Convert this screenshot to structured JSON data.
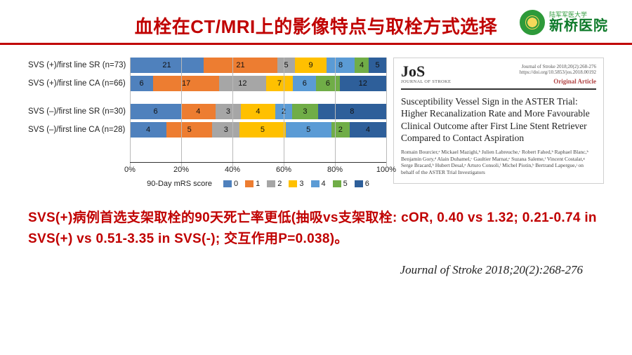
{
  "title": {
    "text": "血栓在CT/MRI上的影像特点与取栓方式选择",
    "color": "#c00000"
  },
  "hospital": {
    "small": "陆军军医大学",
    "main": "新桥医院"
  },
  "chart": {
    "type": "bar-stacked-horizontal",
    "xlabel_percent": true,
    "xlim": [
      0,
      100
    ],
    "xticks": [
      0,
      20,
      40,
      60,
      80,
      100
    ],
    "xtick_labels": [
      "0%",
      "20%",
      "40%",
      "60%",
      "80%",
      "100%"
    ],
    "legend_title": "90-Day mRS score",
    "categories": [
      "0",
      "1",
      "2",
      "3",
      "4",
      "5",
      "6"
    ],
    "colors": {
      "0": "#4f81bd",
      "1": "#ed7d31",
      "2": "#a6a6a6",
      "3": "#ffc000",
      "4": "#5b9bd5",
      "5": "#70ad47",
      "6": "#2e5f9a"
    },
    "label_fontsize": 11,
    "groups": [
      {
        "rows": [
          {
            "label": "SVS (+)/first line SR (n=73)",
            "segments": [
              {
                "cat": "0",
                "value": 21
              },
              {
                "cat": "1",
                "value": 21
              },
              {
                "cat": "2",
                "value": 5
              },
              {
                "cat": "3",
                "value": 9
              },
              {
                "cat": "4",
                "value": 8
              },
              {
                "cat": "5",
                "value": 4
              },
              {
                "cat": "6",
                "value": 5
              }
            ]
          },
          {
            "label": "SVS (+)/first line CA (n=66)",
            "segments": [
              {
                "cat": "0",
                "value": 6
              },
              {
                "cat": "1",
                "value": 17
              },
              {
                "cat": "2",
                "value": 12
              },
              {
                "cat": "3",
                "value": 7
              },
              {
                "cat": "4",
                "value": 6
              },
              {
                "cat": "5",
                "value": 6
              },
              {
                "cat": "6",
                "value": 12
              }
            ]
          }
        ]
      },
      {
        "rows": [
          {
            "label": "SVS (–)/first line SR (n=30)",
            "segments": [
              {
                "cat": "0",
                "value": 6
              },
              {
                "cat": "1",
                "value": 4
              },
              {
                "cat": "2",
                "value": 3
              },
              {
                "cat": "3",
                "value": 4
              },
              {
                "cat": "4",
                "value": 2
              },
              {
                "cat": "5",
                "value": 3
              },
              {
                "cat": "6",
                "value": 8
              }
            ]
          },
          {
            "label": "SVS (–)/first line CA (n=28)",
            "segments": [
              {
                "cat": "0",
                "value": 4
              },
              {
                "cat": "1",
                "value": 5
              },
              {
                "cat": "2",
                "value": 3
              },
              {
                "cat": "3",
                "value": 5
              },
              {
                "cat": "4",
                "value": 5
              },
              {
                "cat": "5",
                "value": 2
              },
              {
                "cat": "6",
                "value": 4
              }
            ]
          }
        ]
      }
    ]
  },
  "article": {
    "journal_abbrev": "JoS",
    "journal_sub": "JOURNAL OF STROKE",
    "meta_lines": [
      "Journal of Stroke 2018;20(2):268-276",
      "https://doi.org/10.5853/jos.2018.00192"
    ],
    "orig": "Original Article",
    "title": "Susceptibility Vessel Sign in the ASTER Trial: Higher Recanalization Rate and More Favourable Clinical Outcome after First Line Stent Retriever Compared to Contact Aspiration",
    "authors": "Romain Bourcier,ᵃ Mickael Mazighi,ᵇ Julien Labreuche,ᶜ Robert Fahed,ᵇ Raphael Blanc,ᵇ Benjamin Gory,ᵈ Alain Duhamel,ᶜ Gaultier Marnat,ᵉ Suzana Saleme,ᶠ Vincent Costalat,ᵍ Serge Bracard,ʰ Hubert Desal,ᵃ Arturo Consoli,ⁱ Michel Piotin,ᵇ Bertrand Lapergue,ʲ on behalf of the ASTER Trial Investigators"
  },
  "conclusion": {
    "text": "SVS(+)病例首选支架取栓的90天死亡率更低(抽吸vs支架取栓: cOR, 0.40 vs 1.32; 0.21-0.74 in SVS(+) vs 0.51-3.35 in SVS(-); 交互作用P=0.038)。",
    "color": "#c00000"
  },
  "citation": "Journal of Stroke 2018;20(2):268-276"
}
